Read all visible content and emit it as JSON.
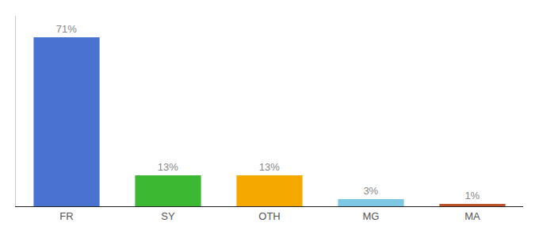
{
  "chart_data": {
    "type": "bar",
    "categories": [
      "FR",
      "SY",
      "OTH",
      "MG",
      "MA"
    ],
    "values": [
      71,
      13,
      13,
      3,
      1
    ],
    "value_labels": [
      "71%",
      "13%",
      "13%",
      "3%",
      "1%"
    ],
    "colors": [
      "#4a72d1",
      "#3db832",
      "#f5a800",
      "#7ec8e3",
      "#c0522a"
    ],
    "ylim": [
      0,
      80
    ],
    "data_labels": true,
    "grid": false,
    "tick_labels": "x"
  }
}
